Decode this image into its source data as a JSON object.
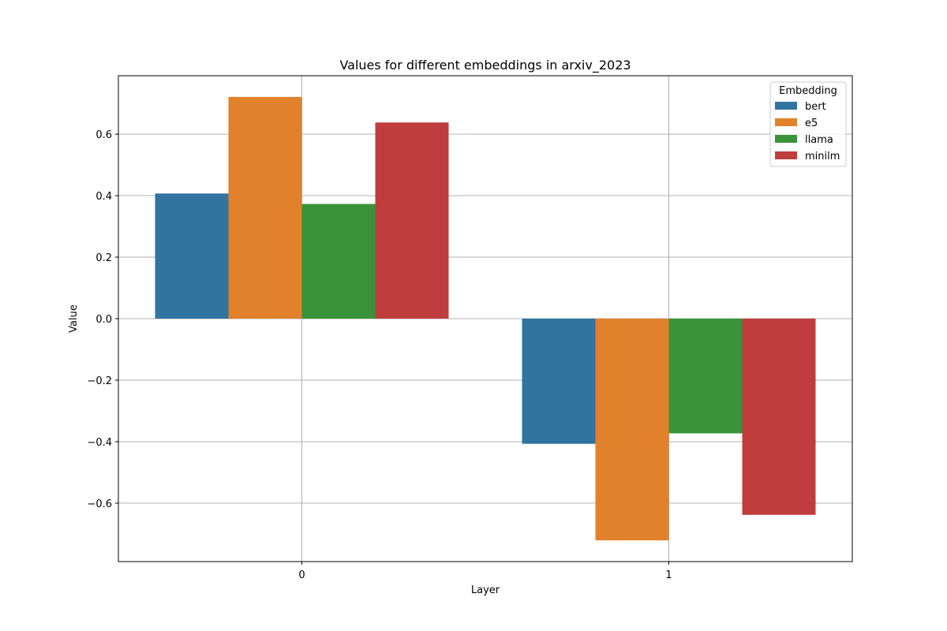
{
  "chart_data": {
    "type": "bar",
    "title": "Values for different embeddings in arxiv_2023",
    "xlabel": "Layer",
    "ylabel": "Value",
    "categories": [
      "0",
      "1"
    ],
    "series": [
      {
        "name": "bert",
        "values": [
          0.407,
          -0.407
        ],
        "color": "#3274a1"
      },
      {
        "name": "e5",
        "values": [
          0.721,
          -0.721
        ],
        "color": "#e1812c"
      },
      {
        "name": "llama",
        "values": [
          0.373,
          -0.373
        ],
        "color": "#3a923a"
      },
      {
        "name": "minilm",
        "values": [
          0.638,
          -0.638
        ],
        "color": "#c03d3e"
      }
    ],
    "ylim": [
      -0.79,
      0.79
    ],
    "yticks": [
      -0.6,
      -0.4,
      -0.2,
      0.0,
      0.2,
      0.4,
      0.6
    ],
    "ytick_labels": [
      "−0.6",
      "−0.4",
      "−0.2",
      "0.0",
      "0.2",
      "0.4",
      "0.6"
    ],
    "grid": true,
    "legend": {
      "title": "Embedding",
      "placement": "top-right"
    }
  }
}
